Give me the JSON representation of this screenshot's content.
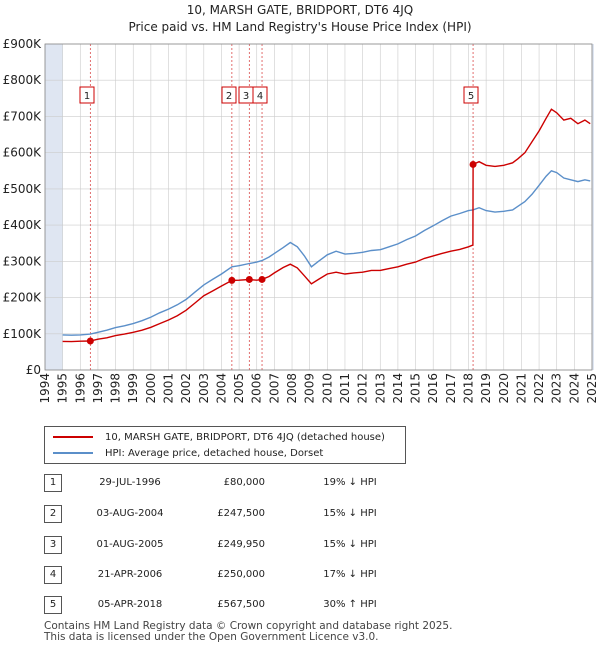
{
  "title_line1": "10, MARSH GATE, BRIDPORT, DT6 4JQ",
  "title_line2": "Price paid vs. HM Land Registry's House Price Index (HPI)",
  "chart_data": {
    "type": "line",
    "x_range": [
      1994,
      2025
    ],
    "ylim": [
      0,
      900000
    ],
    "y_ticks": [
      0,
      100000,
      200000,
      300000,
      400000,
      500000,
      600000,
      700000,
      800000,
      900000
    ],
    "y_tick_labels": [
      "£0",
      "£100K",
      "£200K",
      "£300K",
      "£400K",
      "£500K",
      "£600K",
      "£700K",
      "£800K",
      "£900K"
    ],
    "x_ticks": [
      "1994",
      "1995",
      "1996",
      "1997",
      "1998",
      "1999",
      "2000",
      "2001",
      "2002",
      "2003",
      "2004",
      "2005",
      "2006",
      "2007",
      "2008",
      "2009",
      "2010",
      "2011",
      "2012",
      "2013",
      "2014",
      "2015",
      "2016",
      "2017",
      "2018",
      "2019",
      "2020",
      "2021",
      "2022",
      "2023",
      "2024",
      "2025"
    ],
    "colors": {
      "price": "#cc0000",
      "hpi": "#5b8fc9",
      "shade": "#dfe6f2",
      "grid": "#cccccc"
    },
    "series": [
      {
        "name": "10, MARSH GATE, BRIDPORT, DT6 4JQ (detached house)",
        "color": "#cc0000",
        "points": [
          [
            1995.0,
            79000
          ],
          [
            1995.5,
            78500
          ],
          [
            1996.0,
            79500
          ],
          [
            1996.57,
            80000
          ],
          [
            1997.0,
            85000
          ],
          [
            1997.5,
            89000
          ],
          [
            1998.0,
            95000
          ],
          [
            1998.5,
            99000
          ],
          [
            1999.0,
            104000
          ],
          [
            1999.5,
            110000
          ],
          [
            2000.0,
            118000
          ],
          [
            2000.5,
            128000
          ],
          [
            2001.0,
            138000
          ],
          [
            2001.5,
            150000
          ],
          [
            2002.0,
            165000
          ],
          [
            2002.5,
            185000
          ],
          [
            2003.0,
            205000
          ],
          [
            2003.5,
            218000
          ],
          [
            2004.0,
            232000
          ],
          [
            2004.59,
            247500
          ],
          [
            2005.0,
            248000
          ],
          [
            2005.58,
            249950
          ],
          [
            2006.0,
            248000
          ],
          [
            2006.3,
            250000
          ],
          [
            2006.7,
            258000
          ],
          [
            2007.0,
            268000
          ],
          [
            2007.5,
            283000
          ],
          [
            2007.9,
            292000
          ],
          [
            2008.3,
            282000
          ],
          [
            2008.7,
            260000
          ],
          [
            2009.1,
            238000
          ],
          [
            2009.5,
            250000
          ],
          [
            2010.0,
            265000
          ],
          [
            2010.5,
            270000
          ],
          [
            2011.0,
            265000
          ],
          [
            2011.5,
            268000
          ],
          [
            2012.0,
            270000
          ],
          [
            2012.5,
            275000
          ],
          [
            2013.0,
            275000
          ],
          [
            2013.5,
            280000
          ],
          [
            2014.0,
            285000
          ],
          [
            2014.5,
            292000
          ],
          [
            2015.0,
            298000
          ],
          [
            2015.5,
            308000
          ],
          [
            2016.0,
            315000
          ],
          [
            2016.5,
            322000
          ],
          [
            2017.0,
            328000
          ],
          [
            2017.5,
            333000
          ],
          [
            2018.0,
            340000
          ],
          [
            2018.25,
            345000
          ],
          [
            2018.26,
            567500
          ],
          [
            2018.6,
            575000
          ],
          [
            2019.0,
            565000
          ],
          [
            2019.5,
            562000
          ],
          [
            2020.0,
            565000
          ],
          [
            2020.5,
            572000
          ],
          [
            2020.8,
            583000
          ],
          [
            2021.2,
            600000
          ],
          [
            2021.6,
            630000
          ],
          [
            2022.0,
            660000
          ],
          [
            2022.4,
            695000
          ],
          [
            2022.7,
            720000
          ],
          [
            2023.0,
            710000
          ],
          [
            2023.4,
            690000
          ],
          [
            2023.8,
            695000
          ],
          [
            2024.2,
            680000
          ],
          [
            2024.6,
            690000
          ],
          [
            2024.9,
            680000
          ]
        ]
      },
      {
        "name": "HPI: Average price, detached house, Dorset",
        "color": "#5b8fc9",
        "points": [
          [
            1995.0,
            97000
          ],
          [
            1995.5,
            96000
          ],
          [
            1996.0,
            97000
          ],
          [
            1996.57,
            99000
          ],
          [
            1997.0,
            104000
          ],
          [
            1997.5,
            110000
          ],
          [
            1998.0,
            117000
          ],
          [
            1998.5,
            122000
          ],
          [
            1999.0,
            128000
          ],
          [
            1999.5,
            136000
          ],
          [
            2000.0,
            146000
          ],
          [
            2000.5,
            158000
          ],
          [
            2001.0,
            168000
          ],
          [
            2001.5,
            180000
          ],
          [
            2002.0,
            195000
          ],
          [
            2002.5,
            215000
          ],
          [
            2003.0,
            235000
          ],
          [
            2003.5,
            250000
          ],
          [
            2004.0,
            265000
          ],
          [
            2004.59,
            285000
          ],
          [
            2005.0,
            288000
          ],
          [
            2005.58,
            294000
          ],
          [
            2006.0,
            298000
          ],
          [
            2006.3,
            302000
          ],
          [
            2006.7,
            312000
          ],
          [
            2007.0,
            322000
          ],
          [
            2007.5,
            338000
          ],
          [
            2007.9,
            352000
          ],
          [
            2008.3,
            340000
          ],
          [
            2008.7,
            315000
          ],
          [
            2009.1,
            285000
          ],
          [
            2009.5,
            300000
          ],
          [
            2010.0,
            318000
          ],
          [
            2010.5,
            328000
          ],
          [
            2011.0,
            320000
          ],
          [
            2011.5,
            322000
          ],
          [
            2012.0,
            325000
          ],
          [
            2012.5,
            330000
          ],
          [
            2013.0,
            332000
          ],
          [
            2013.5,
            340000
          ],
          [
            2014.0,
            348000
          ],
          [
            2014.5,
            360000
          ],
          [
            2015.0,
            370000
          ],
          [
            2015.5,
            385000
          ],
          [
            2016.0,
            398000
          ],
          [
            2016.5,
            412000
          ],
          [
            2017.0,
            425000
          ],
          [
            2017.5,
            432000
          ],
          [
            2018.0,
            440000
          ],
          [
            2018.25,
            442000
          ],
          [
            2018.6,
            448000
          ],
          [
            2019.0,
            440000
          ],
          [
            2019.5,
            436000
          ],
          [
            2020.0,
            438000
          ],
          [
            2020.5,
            442000
          ],
          [
            2020.8,
            452000
          ],
          [
            2021.2,
            465000
          ],
          [
            2021.6,
            485000
          ],
          [
            2022.0,
            510000
          ],
          [
            2022.4,
            535000
          ],
          [
            2022.7,
            550000
          ],
          [
            2023.0,
            545000
          ],
          [
            2023.4,
            530000
          ],
          [
            2023.8,
            525000
          ],
          [
            2024.2,
            520000
          ],
          [
            2024.6,
            525000
          ],
          [
            2024.9,
            522000
          ]
        ]
      }
    ],
    "sales": [
      {
        "label": "1",
        "x": 1996.57,
        "y": 80000
      },
      {
        "label": "2",
        "x": 2004.59,
        "y": 247500
      },
      {
        "label": "3",
        "x": 2005.58,
        "y": 249950
      },
      {
        "label": "4",
        "x": 2006.3,
        "y": 250000
      },
      {
        "label": "5",
        "x": 2018.26,
        "y": 567500
      }
    ],
    "shade_ranges": [
      [
        1994,
        1995
      ],
      [
        2025,
        2025.1
      ]
    ]
  },
  "legend": {
    "price_label": "10, MARSH GATE, BRIDPORT, DT6 4JQ (detached house)",
    "hpi_label": "HPI: Average price, detached house, Dorset"
  },
  "transactions": [
    {
      "num": "1",
      "date": "29-JUL-1996",
      "price": "£80,000",
      "hpi": "19% ↓ HPI"
    },
    {
      "num": "2",
      "date": "03-AUG-2004",
      "price": "£247,500",
      "hpi": "15% ↓ HPI"
    },
    {
      "num": "3",
      "date": "01-AUG-2005",
      "price": "£249,950",
      "hpi": "15% ↓ HPI"
    },
    {
      "num": "4",
      "date": "21-APR-2006",
      "price": "£250,000",
      "hpi": "17% ↓ HPI"
    },
    {
      "num": "5",
      "date": "05-APR-2018",
      "price": "£567,500",
      "hpi": "30% ↑ HPI"
    }
  ],
  "footer_line1": "Contains HM Land Registry data © Crown copyright and database right 2025.",
  "footer_line2": "This data is licensed under the Open Government Licence v3.0."
}
